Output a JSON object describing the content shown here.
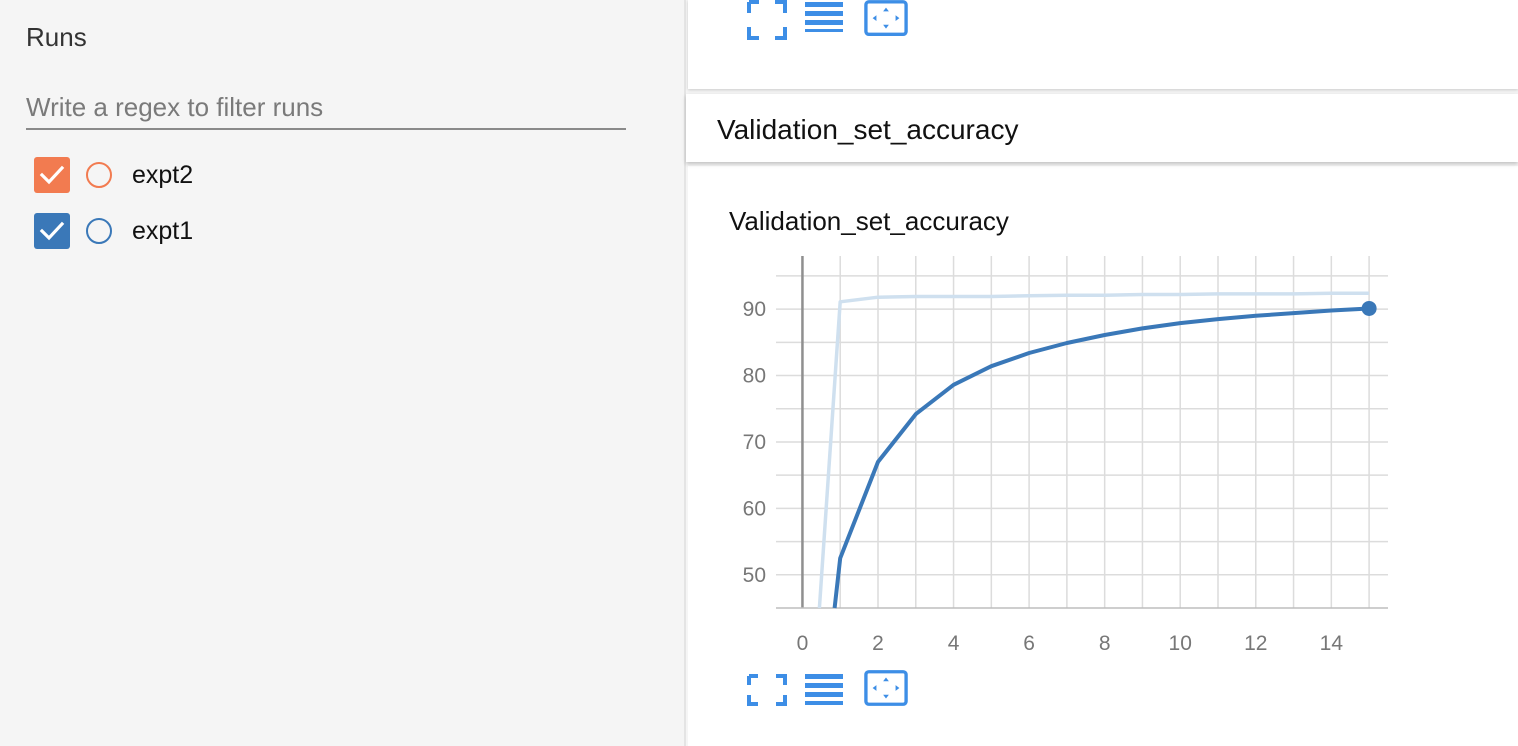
{
  "sidebar": {
    "title": "Runs",
    "filter": {
      "placeholder": "Write a regex to filter runs",
      "value": ""
    },
    "runs": [
      {
        "name": "expt2",
        "color": "#f27b50",
        "checked": true
      },
      {
        "name": "expt1",
        "color": "#3a78b8",
        "checked": true
      }
    ]
  },
  "section": {
    "title": "Validation_set_accuracy"
  },
  "toolbar": {
    "icons": [
      "expand-icon",
      "data-list-icon",
      "fit-domain-icon"
    ]
  },
  "chart_data": {
    "type": "line",
    "title": "Validation_set_accuracy",
    "xlabel": "",
    "ylabel": "",
    "xlim": [
      -0.7,
      15.5
    ],
    "ylim": [
      45,
      98
    ],
    "x_ticks": [
      0,
      2,
      4,
      6,
      8,
      10,
      12,
      14
    ],
    "y_ticks": [
      50,
      60,
      70,
      80,
      90
    ],
    "grid": true,
    "series": [
      {
        "role": "raw",
        "color": "#cfe0ef",
        "x": [
          0.45,
          1,
          2,
          3,
          4,
          5,
          6,
          7,
          8,
          9,
          10,
          11,
          12,
          13,
          14,
          15
        ],
        "y": [
          45,
          91.1,
          91.8,
          91.9,
          91.9,
          91.9,
          92.0,
          92.1,
          92.1,
          92.2,
          92.2,
          92.3,
          92.3,
          92.3,
          92.4,
          92.4
        ]
      },
      {
        "role": "smoothed",
        "color": "#3a78b8",
        "x": [
          0.85,
          1,
          2,
          3,
          4,
          5,
          6,
          7,
          8,
          9,
          10,
          11,
          12,
          13,
          14,
          15
        ],
        "y": [
          45,
          52.5,
          67.0,
          74.2,
          78.6,
          81.4,
          83.4,
          84.9,
          86.1,
          87.1,
          87.9,
          88.5,
          89.0,
          89.4,
          89.8,
          90.1
        ]
      }
    ]
  }
}
